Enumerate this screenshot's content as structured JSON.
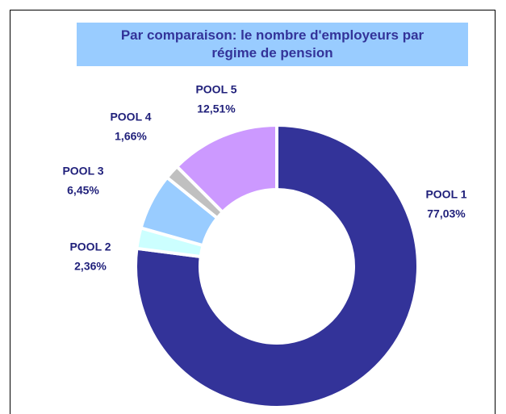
{
  "chart_data": {
    "type": "donut",
    "title": "Par comparaison: le nombre d'employeurs par régime de pension",
    "categories": [
      "POOL 1",
      "POOL 2",
      "POOL 3",
      "POOL 4",
      "POOL 5"
    ],
    "values": [
      77.03,
      2.36,
      6.45,
      1.66,
      12.51
    ],
    "value_labels": [
      "77,03%",
      "2,36%",
      "6,45%",
      "1,66%",
      "12,51%"
    ],
    "colors": [
      "#333399",
      "#ccffff",
      "#99ccff",
      "#c0c0c0",
      "#cc99ff"
    ]
  }
}
